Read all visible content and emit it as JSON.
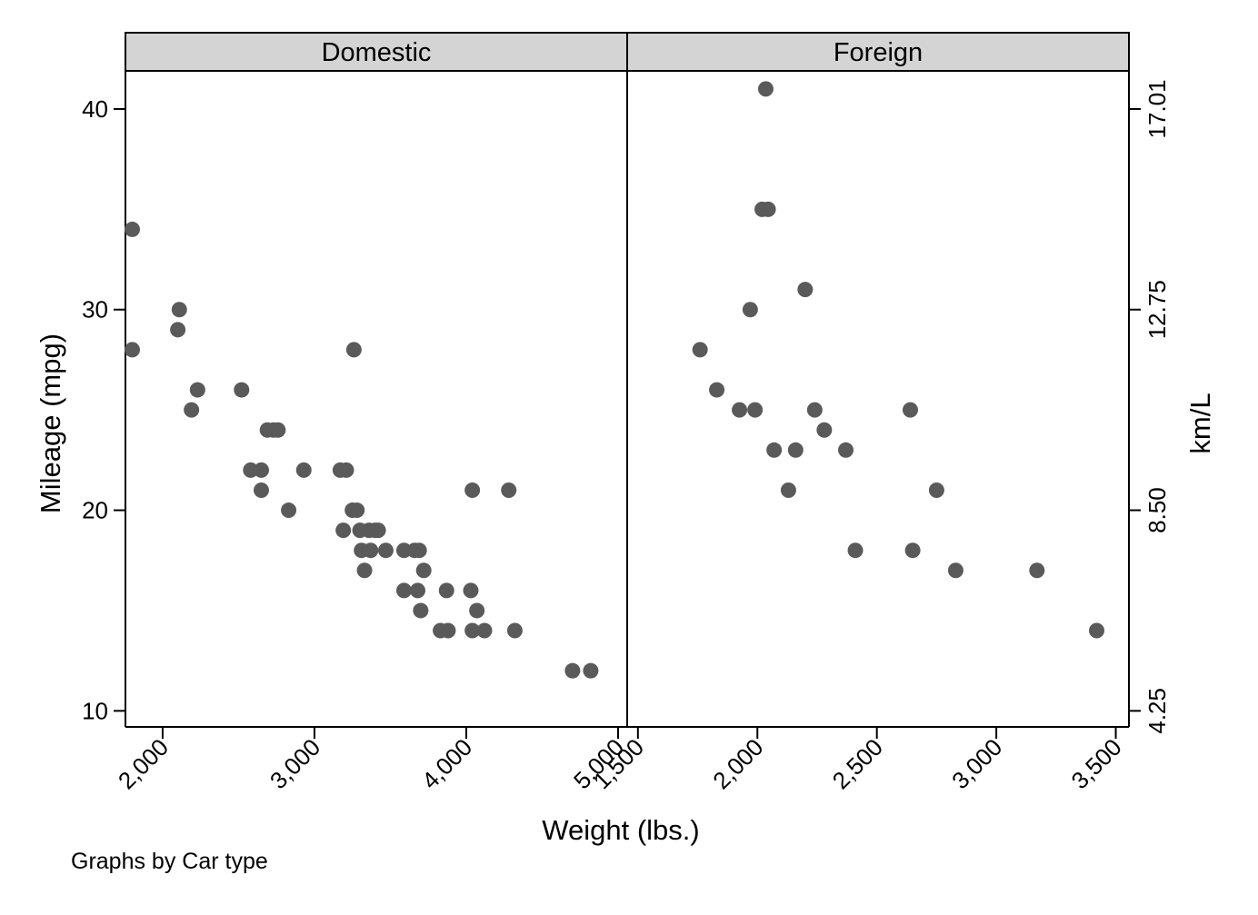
{
  "chart_data": {
    "type": "scatter",
    "panels_by": "Car type",
    "xlabel": "Weight (lbs.)",
    "ylabel": "Mileage (mpg)",
    "y2label": "km/L",
    "ylim": [
      9.2,
      41.9
    ],
    "y_ticks": [
      10,
      20,
      30,
      40
    ],
    "y2_ticks": [
      "4.25",
      "8.50",
      "12.75",
      "17.01"
    ],
    "marker_color": "#5a5a5a",
    "strip_color": "#d4d4d4",
    "note": "Graphs by Car type",
    "panels": [
      {
        "name": "Domestic",
        "xlim": [
          1755,
          5060
        ],
        "x_ticks": [
          2000,
          3000,
          4000,
          5000
        ],
        "x_tick_labels": [
          "2,000",
          "3,000",
          "4,000",
          "5,000"
        ],
        "points": [
          [
            1800,
            34
          ],
          [
            1800,
            28
          ],
          [
            2110,
            30
          ],
          [
            2100,
            29
          ],
          [
            2230,
            26
          ],
          [
            2190,
            25
          ],
          [
            2520,
            26
          ],
          [
            2580,
            22
          ],
          [
            2650,
            22
          ],
          [
            2650,
            21
          ],
          [
            2690,
            24
          ],
          [
            2730,
            24
          ],
          [
            2760,
            24
          ],
          [
            2830,
            20
          ],
          [
            2930,
            22
          ],
          [
            3170,
            22
          ],
          [
            3210,
            22
          ],
          [
            3190,
            19
          ],
          [
            3260,
            28
          ],
          [
            3250,
            20
          ],
          [
            3280,
            20
          ],
          [
            3300,
            19
          ],
          [
            3360,
            19
          ],
          [
            3400,
            19
          ],
          [
            3420,
            19
          ],
          [
            3310,
            18
          ],
          [
            3370,
            18
          ],
          [
            3330,
            17
          ],
          [
            3470,
            18
          ],
          [
            3590,
            18
          ],
          [
            3660,
            18
          ],
          [
            3690,
            18
          ],
          [
            3590,
            16
          ],
          [
            3680,
            16
          ],
          [
            3700,
            15
          ],
          [
            3720,
            17
          ],
          [
            3830,
            14
          ],
          [
            3880,
            14
          ],
          [
            3870,
            16
          ],
          [
            4030,
            16
          ],
          [
            4040,
            21
          ],
          [
            4040,
            14
          ],
          [
            4120,
            14
          ],
          [
            4070,
            15
          ],
          [
            4280,
            21
          ],
          [
            4320,
            14
          ],
          [
            4700,
            12
          ],
          [
            4820,
            12
          ]
        ]
      },
      {
        "name": "Foreign",
        "xlim": [
          1455,
          3555
        ],
        "x_ticks": [
          1500,
          2000,
          2500,
          3000,
          3500
        ],
        "x_tick_labels": [
          "1,500",
          "2,000",
          "2,500",
          "3,000",
          "3,500"
        ],
        "points": [
          [
            2035,
            41
          ],
          [
            2020,
            35
          ],
          [
            2045,
            35
          ],
          [
            2200,
            31
          ],
          [
            1970,
            30
          ],
          [
            1760,
            28
          ],
          [
            1830,
            26
          ],
          [
            1925,
            25
          ],
          [
            1990,
            25
          ],
          [
            2240,
            25
          ],
          [
            2640,
            25
          ],
          [
            2280,
            24
          ],
          [
            2070,
            23
          ],
          [
            2160,
            23
          ],
          [
            2370,
            23
          ],
          [
            2130,
            21
          ],
          [
            2750,
            21
          ],
          [
            2410,
            18
          ],
          [
            2650,
            18
          ],
          [
            2830,
            17
          ],
          [
            3170,
            17
          ],
          [
            3420,
            14
          ]
        ]
      }
    ]
  }
}
